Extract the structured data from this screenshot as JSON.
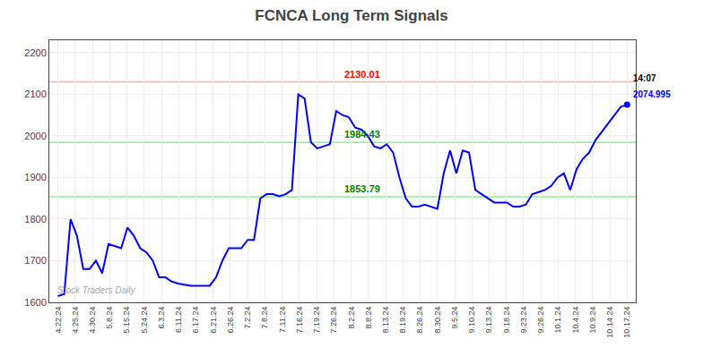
{
  "chart_data": {
    "type": "line",
    "title": "FCNCA Long Term Signals",
    "color": "blue",
    "x": [
      0,
      0.366666666667,
      0.733333333333,
      1.1,
      1.466666666667,
      1.833333333333,
      2.2,
      2.566666666667,
      2.933333333333,
      3.3,
      3.666666666667,
      4.033333333333,
      4.4,
      4.766666666667,
      5.133333333333,
      5.5,
      5.866666666667,
      6.233333333333,
      6.6,
      6.966666666667,
      7.333333333333,
      7.7,
      8.066666666667,
      8.433333333333,
      8.8,
      9.166666666667,
      9.533333333333,
      9.9,
      10.266666666667,
      10.633333333333,
      11,
      11.366666666667,
      11.733333333333,
      12.1,
      12.466666666667,
      12.833333333333,
      13.2,
      13.566666666667,
      13.933333333333,
      14.3,
      14.666666666667,
      15.033333333333,
      15.4,
      15.766666666667,
      16.133333333333,
      16.5,
      16.866666666667,
      17.233333333333,
      17.6,
      17.966666666667,
      18.333333333333,
      18.7,
      19.066666666667,
      19.433333333333,
      19.8,
      20.166666666667,
      20.533333333333,
      20.9,
      21.266666666667,
      21.633333333333,
      22,
      22.366666666667,
      22.733333333333,
      23.1,
      23.466666666667,
      23.833333333333,
      24.2,
      24.566666666667,
      24.933333333333,
      25.3,
      25.666666666667,
      26.033333333333,
      26.4,
      26.766666666667,
      27.133333333333,
      27.5,
      27.866666666667,
      28.233333333333,
      28.6,
      28.966666666667,
      29.333333333333,
      29.7,
      30.066666666667,
      30.433333333333,
      30.8,
      31.166666666667,
      31.533333333333,
      31.9,
      32.266666666667,
      32.633333333333,
      33
    ],
    "values": [
      1615,
      1620,
      1800,
      1760,
      1680,
      1680,
      1700,
      1670,
      1740,
      1735,
      1730,
      1780,
      1760,
      1730,
      1720,
      1700,
      1660,
      1660,
      1650,
      1645,
      1643,
      1640,
      1640,
      1640,
      1640,
      1660,
      1700,
      1730,
      1730,
      1730,
      1750,
      1750,
      1850,
      1860,
      1860,
      1855,
      1860,
      1870,
      2100,
      2090,
      1985,
      1970,
      1975,
      1980,
      2060,
      2050,
      2045,
      2020,
      2015,
      2000,
      1975,
      1970,
      1980,
      1960,
      1900,
      1850,
      1830,
      1830,
      1835,
      1830,
      1825,
      1910,
      1965,
      1910,
      1965,
      1960,
      1870,
      1860,
      1850,
      1840,
      1840,
      1840,
      1830,
      1830,
      1835,
      1860,
      1865,
      1870,
      1880,
      1900,
      1910,
      1870,
      1920,
      1945,
      1960,
      1990,
      2010,
      2030,
      2050,
      2070,
      2075
    ],
    "xlim": [
      -0.5,
      33.5
    ],
    "xticks": [
      {
        "value": 0,
        "label": "4.22.24"
      },
      {
        "value": 1,
        "label": "4.25.24"
      },
      {
        "value": 2,
        "label": "4.30.24"
      },
      {
        "value": 3,
        "label": "5.8.24"
      },
      {
        "value": 4,
        "label": "5.15.24"
      },
      {
        "value": 5,
        "label": "5.24.24"
      },
      {
        "value": 6,
        "label": "6.3.24"
      },
      {
        "value": 7,
        "label": "6.11.24"
      },
      {
        "value": 8,
        "label": "6.17.24"
      },
      {
        "value": 9,
        "label": "6.21.24"
      },
      {
        "value": 10,
        "label": "6.26.24"
      },
      {
        "value": 11,
        "label": "7.2.24"
      },
      {
        "value": 12,
        "label": "7.8.24"
      },
      {
        "value": 13,
        "label": "7.11.24"
      },
      {
        "value": 14,
        "label": "7.16.24"
      },
      {
        "value": 15,
        "label": "7.19.24"
      },
      {
        "value": 16,
        "label": "7.26.24"
      },
      {
        "value": 17,
        "label": "8.2.24"
      },
      {
        "value": 18,
        "label": "8.8.24"
      },
      {
        "value": 19,
        "label": "8.13.24"
      },
      {
        "value": 20,
        "label": "8.19.24"
      },
      {
        "value": 21,
        "label": "8.26.24"
      },
      {
        "value": 22,
        "label": "8.30.24"
      },
      {
        "value": 23,
        "label": "9.5.24"
      },
      {
        "value": 24,
        "label": "9.10.24"
      },
      {
        "value": 25,
        "label": "9.13.24"
      },
      {
        "value": 26,
        "label": "9.18.24"
      },
      {
        "value": 27,
        "label": "9.23.24"
      },
      {
        "value": 28,
        "label": "9.26.24"
      },
      {
        "value": 29,
        "label": "10.1.24"
      },
      {
        "value": 30,
        "label": "10.4.24"
      },
      {
        "value": 31,
        "label": "10.9.24"
      },
      {
        "value": 32,
        "label": "10.14.24"
      },
      {
        "value": 33,
        "label": "10.17.24"
      }
    ],
    "ylim": [
      1600,
      2230
    ],
    "yticks": [
      1600,
      1700,
      1800,
      1900,
      2000,
      2100,
      2200
    ],
    "grid": true,
    "reference_lines": [
      {
        "value": 2130.01,
        "color": "#ffb0b0",
        "label": "2130.01",
        "label_color": "red"
      },
      {
        "value": 1984.43,
        "color": "#90ee90",
        "label": "1984.43",
        "label_color": "green"
      },
      {
        "value": 1853.79,
        "color": "#90ee90",
        "label": "1853.79",
        "label_color": "green"
      }
    ],
    "last_point": {
      "color": "blue",
      "annotations": [
        {
          "text": "14:07",
          "color": "black"
        },
        {
          "text": "2074.995",
          "color": "blue"
        }
      ]
    },
    "watermark": {
      "text": "Stock Traders Daily",
      "color": "gray"
    }
  }
}
